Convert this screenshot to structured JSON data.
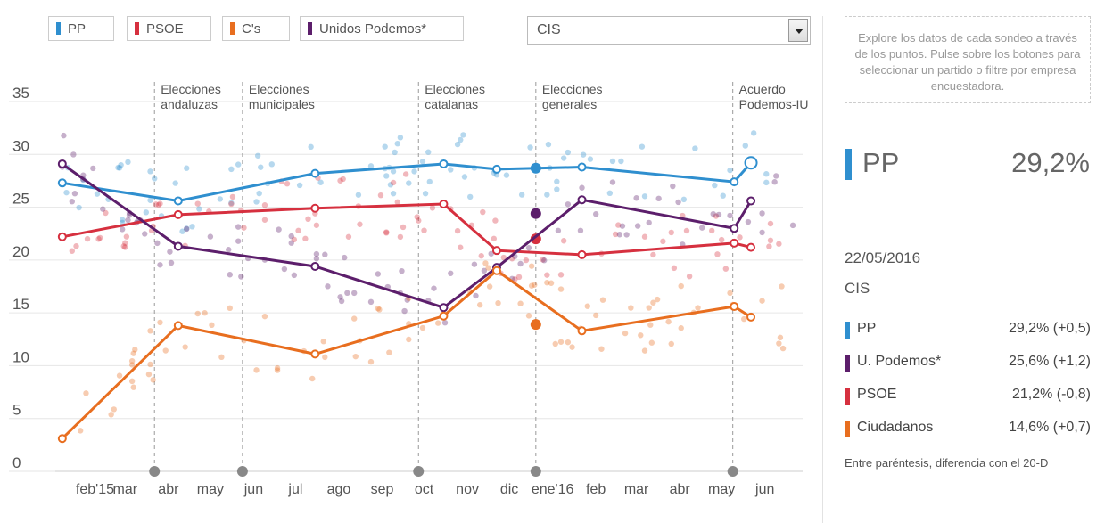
{
  "legend": [
    {
      "label": "PP",
      "color": "#2f8fcf"
    },
    {
      "label": "PSOE",
      "color": "#d6303f"
    },
    {
      "label": "C's",
      "color": "#e86e1f"
    },
    {
      "label": "Unidos Podemos*",
      "color": "#5c1e6b"
    }
  ],
  "filter": {
    "selected": "CIS"
  },
  "panel": {
    "help": "Explore los datos de cada sondeo a través de los puntos. Pulse sobre los botones para seleccionar un partido o filtre por empresa encuestadora.",
    "selected_party": "PP",
    "selected_value": "29,2%",
    "selected_color": "#2f8fcf",
    "date": "22/05/2016",
    "pollster": "CIS",
    "rows": [
      {
        "name": "PP",
        "value": "29,2% (+0,5)",
        "color": "#2f8fcf"
      },
      {
        "name": "U. Podemos*",
        "value": "25,6% (+1,2)",
        "color": "#5c1e6b"
      },
      {
        "name": "PSOE",
        "value": "21,2% (-0,8)",
        "color": "#d6303f"
      },
      {
        "name": "Ciudadanos",
        "value": "14,6% (+0,7)",
        "color": "#e86e1f"
      }
    ],
    "footnote": "Entre paréntesis, diferencia con el 20-D"
  },
  "chart_data": {
    "type": "line",
    "ylim": [
      0,
      35
    ],
    "yticks": [
      0,
      5,
      10,
      15,
      20,
      25,
      30,
      35
    ],
    "xlim": [
      "2015-01-10",
      "2016-06-28"
    ],
    "xticks": [
      {
        "label": "feb'15",
        "date": "2015-02-01"
      },
      {
        "label": "mar",
        "date": "2015-03-01"
      },
      {
        "label": "abr",
        "date": "2015-04-01"
      },
      {
        "label": "may",
        "date": "2015-05-01"
      },
      {
        "label": "jun",
        "date": "2015-06-01"
      },
      {
        "label": "jul",
        "date": "2015-07-01"
      },
      {
        "label": "ago",
        "date": "2015-08-01"
      },
      {
        "label": "sep",
        "date": "2015-09-01"
      },
      {
        "label": "oct",
        "date": "2015-10-01"
      },
      {
        "label": "nov",
        "date": "2015-11-01"
      },
      {
        "label": "dic",
        "date": "2015-12-01"
      },
      {
        "label": "ene'16",
        "date": "2016-01-01"
      },
      {
        "label": "feb",
        "date": "2016-02-01"
      },
      {
        "label": "mar",
        "date": "2016-03-01"
      },
      {
        "label": "abr",
        "date": "2016-04-01"
      },
      {
        "label": "may",
        "date": "2016-05-01"
      },
      {
        "label": "jun",
        "date": "2016-06-01"
      }
    ],
    "events": [
      {
        "label": [
          "Elecciones",
          "andaluzas"
        ],
        "date": "2015-03-22"
      },
      {
        "label": [
          "Elecciones",
          "municipales"
        ],
        "date": "2015-05-24"
      },
      {
        "label": [
          "Elecciones",
          "catalanas"
        ],
        "date": "2015-09-27"
      },
      {
        "label": [
          "Elecciones",
          "generales"
        ],
        "date": "2015-12-20"
      },
      {
        "label": [
          "Acuerdo",
          "Podemos-IU"
        ],
        "date": "2016-05-09"
      }
    ],
    "series": [
      {
        "name": "PP",
        "color": "#2f8fcf",
        "points": [
          {
            "date": "2015-01-15",
            "value": 27.3
          },
          {
            "date": "2015-04-08",
            "value": 25.6
          },
          {
            "date": "2015-07-15",
            "value": 28.2
          },
          {
            "date": "2015-10-15",
            "value": 29.1
          },
          {
            "date": "2015-11-22",
            "value": 28.6
          },
          {
            "date": "2016-01-22",
            "value": 28.8
          },
          {
            "date": "2016-05-10",
            "value": 27.4
          },
          {
            "date": "2016-05-22",
            "value": 29.2
          }
        ],
        "election": {
          "date": "2015-12-20",
          "value": 28.7
        }
      },
      {
        "name": "PSOE",
        "color": "#d6303f",
        "points": [
          {
            "date": "2015-01-15",
            "value": 22.2
          },
          {
            "date": "2015-04-08",
            "value": 24.3
          },
          {
            "date": "2015-07-15",
            "value": 24.9
          },
          {
            "date": "2015-10-15",
            "value": 25.3
          },
          {
            "date": "2015-11-22",
            "value": 20.9
          },
          {
            "date": "2016-01-22",
            "value": 20.5
          },
          {
            "date": "2016-05-10",
            "value": 21.6
          },
          {
            "date": "2016-05-22",
            "value": 21.2
          }
        ],
        "election": {
          "date": "2015-12-20",
          "value": 22.0
        }
      },
      {
        "name": "Unidos Podemos*",
        "color": "#5c1e6b",
        "points": [
          {
            "date": "2015-01-15",
            "value": 29.1
          },
          {
            "date": "2015-04-08",
            "value": 21.3
          },
          {
            "date": "2015-07-15",
            "value": 19.4
          },
          {
            "date": "2015-10-15",
            "value": 15.5
          },
          {
            "date": "2015-11-22",
            "value": 19.3
          },
          {
            "date": "2016-01-22",
            "value": 25.7
          },
          {
            "date": "2016-05-10",
            "value": 23.0
          },
          {
            "date": "2016-05-22",
            "value": 25.6
          }
        ],
        "election": {
          "date": "2015-12-20",
          "value": 24.4
        }
      },
      {
        "name": "C's",
        "color": "#e86e1f",
        "points": [
          {
            "date": "2015-01-15",
            "value": 3.1
          },
          {
            "date": "2015-04-08",
            "value": 13.8
          },
          {
            "date": "2015-07-15",
            "value": 11.1
          },
          {
            "date": "2015-10-15",
            "value": 14.7
          },
          {
            "date": "2015-11-22",
            "value": 19.0
          },
          {
            "date": "2016-01-22",
            "value": 13.3
          },
          {
            "date": "2016-05-10",
            "value": 15.6
          },
          {
            "date": "2016-05-22",
            "value": 14.6
          }
        ],
        "election": {
          "date": "2015-12-20",
          "value": 13.9
        }
      }
    ]
  }
}
